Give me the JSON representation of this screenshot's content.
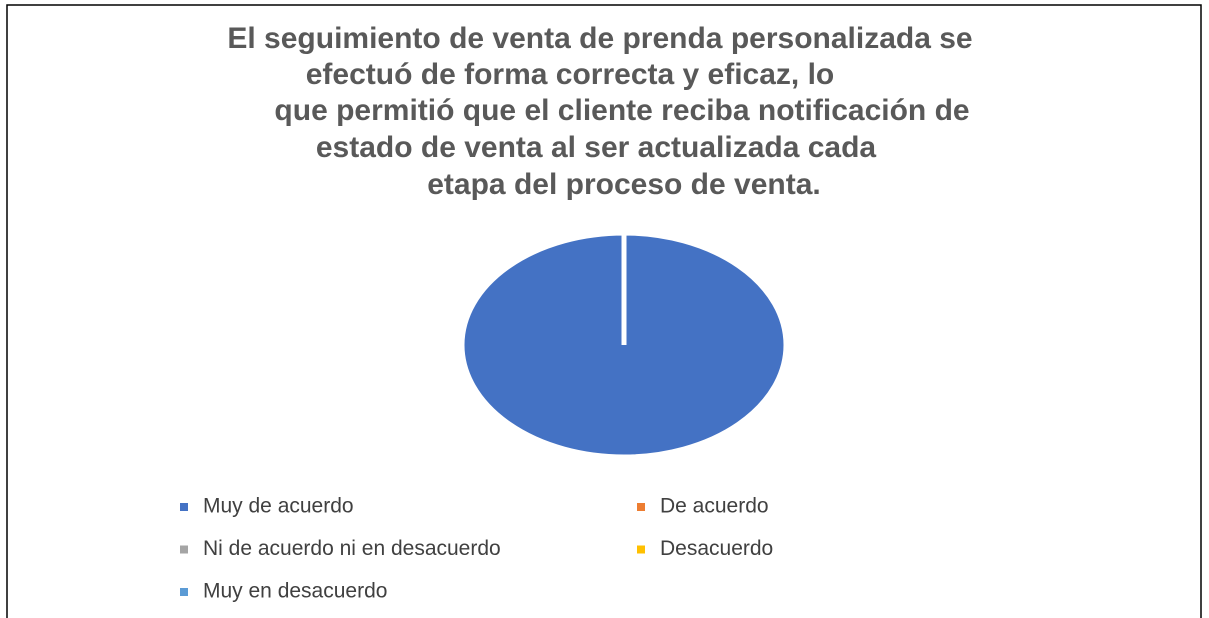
{
  "chart_data": {
    "type": "pie",
    "title": [
      "El seguimiento de venta de prenda personalizada se",
      "efectuó de forma correcta y eficaz, lo",
      "que permitió que el cliente reciba notificación de",
      "estado de venta al ser actualizada cada",
      "etapa del proceso de venta."
    ],
    "categories": [
      "Muy de acuerdo",
      "De acuerdo",
      "Ni de acuerdo ni en desacuerdo",
      "Desacuerdo",
      "Muy en desacuerdo"
    ],
    "values": [
      100,
      0,
      0,
      0,
      0
    ],
    "colors": [
      "#4472c4",
      "#ed7d31",
      "#a5a5a5",
      "#ffc000",
      "#5b9bd5"
    ],
    "legend": "bottom"
  }
}
